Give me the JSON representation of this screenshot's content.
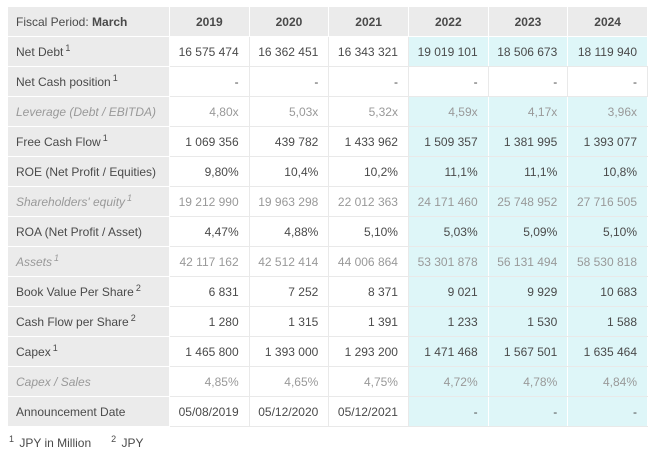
{
  "header": {
    "fiscal_label": "Fiscal Period:",
    "fiscal_value": "March",
    "years": [
      "2019",
      "2020",
      "2021",
      "2022",
      "2023",
      "2024"
    ]
  },
  "estimate_start_index": 3,
  "rows": [
    {
      "label": "Net Debt",
      "sup": "1",
      "muted": false,
      "highlight": true,
      "values": [
        "16 575 474",
        "16 362 451",
        "16 343 321",
        "19 019 101",
        "18 506 673",
        "18 119 940"
      ]
    },
    {
      "label": "Net Cash position",
      "sup": "1",
      "muted": false,
      "highlight": false,
      "values": [
        "-",
        "-",
        "-",
        "-",
        "-",
        "-"
      ]
    },
    {
      "label": "Leverage (Debt / EBITDA)",
      "sup": "",
      "muted": true,
      "highlight": true,
      "values": [
        "4,80x",
        "5,03x",
        "5,32x",
        "4,59x",
        "4,17x",
        "3,96x"
      ]
    },
    {
      "label": "Free Cash Flow",
      "sup": "1",
      "muted": false,
      "highlight": true,
      "values": [
        "1 069 356",
        "439 782",
        "1 433 962",
        "1 509 357",
        "1 381 995",
        "1 393 077"
      ]
    },
    {
      "label": "ROE (Net Profit / Equities)",
      "sup": "",
      "muted": false,
      "highlight": true,
      "values": [
        "9,80%",
        "10,4%",
        "10,2%",
        "11,1%",
        "11,1%",
        "10,8%"
      ]
    },
    {
      "label": "Shareholders' equity",
      "sup": "1",
      "muted": true,
      "highlight": true,
      "values": [
        "19 212 990",
        "19 963 298",
        "22 012 363",
        "24 171 460",
        "25 748 952",
        "27 716 505"
      ]
    },
    {
      "label": "ROA (Net Profit / Asset)",
      "sup": "",
      "muted": false,
      "highlight": true,
      "values": [
        "4,47%",
        "4,88%",
        "5,10%",
        "5,03%",
        "5,09%",
        "5,10%"
      ]
    },
    {
      "label": "Assets",
      "sup": "1",
      "muted": true,
      "highlight": true,
      "values": [
        "42 117 162",
        "42 512 414",
        "44 006 864",
        "53 301 878",
        "56 131 494",
        "58 530 818"
      ]
    },
    {
      "label": "Book Value Per Share",
      "sup": "2",
      "muted": false,
      "highlight": true,
      "values": [
        "6 831",
        "7 252",
        "8 371",
        "9 021",
        "9 929",
        "10 683"
      ]
    },
    {
      "label": "Cash Flow per Share",
      "sup": "2",
      "muted": false,
      "highlight": true,
      "values": [
        "1 280",
        "1 315",
        "1 391",
        "1 233",
        "1 530",
        "1 588"
      ]
    },
    {
      "label": "Capex",
      "sup": "1",
      "muted": false,
      "highlight": true,
      "values": [
        "1 465 800",
        "1 393 000",
        "1 293 200",
        "1 471 468",
        "1 567 501",
        "1 635 464"
      ]
    },
    {
      "label": "Capex / Sales",
      "sup": "",
      "muted": true,
      "highlight": true,
      "values": [
        "4,85%",
        "4,65%",
        "4,75%",
        "4,72%",
        "4,78%",
        "4,84%"
      ]
    },
    {
      "label": "Announcement Date",
      "sup": "",
      "muted": false,
      "highlight": true,
      "values": [
        "05/08/2019",
        "05/12/2020",
        "05/12/2021",
        "-",
        "-",
        "-"
      ]
    }
  ],
  "footnotes": [
    {
      "sup": "1",
      "text": "JPY in Million"
    },
    {
      "sup": "2",
      "text": "JPY"
    }
  ],
  "colors": {
    "label_bg": "#ebebeb",
    "estimate_bg": "#def6f8",
    "grid": "#e9e9e9",
    "text_dark": "#4a4a4a",
    "text_muted": "#999999"
  }
}
